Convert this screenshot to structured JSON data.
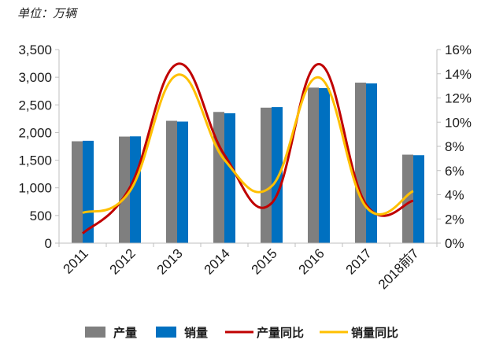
{
  "unit_label": "单位：万辆",
  "chart_data": {
    "type": "bar",
    "categories": [
      "2011",
      "2012",
      "2013",
      "2014",
      "2015",
      "2016",
      "2017",
      "2018前7"
    ],
    "series": [
      {
        "name": "产量",
        "type": "bar",
        "axis": "left",
        "color": "#7f7f7f",
        "values": [
          1842,
          1927,
          2212,
          2372,
          2450,
          2812,
          2902,
          1600
        ]
      },
      {
        "name": "销量",
        "type": "bar",
        "axis": "left",
        "color": "#0070c0",
        "values": [
          1851,
          1931,
          2198,
          2349,
          2460,
          2803,
          2888,
          1590
        ]
      },
      {
        "name": "产量同比",
        "type": "line",
        "axis": "right",
        "color": "#c00000",
        "values": [
          0.8,
          4.6,
          14.8,
          7.3,
          3.3,
          14.8,
          3.2,
          3.5
        ]
      },
      {
        "name": "销量同比",
        "type": "line",
        "axis": "right",
        "color": "#ffc000",
        "values": [
          2.5,
          4.3,
          13.9,
          6.9,
          4.7,
          13.7,
          3.0,
          4.3
        ]
      }
    ],
    "y_left": {
      "min": 0,
      "max": 3500,
      "ticks": [
        "0",
        "500",
        "1,000",
        "1,500",
        "2,000",
        "2,500",
        "3,000",
        "3,500"
      ]
    },
    "y_right": {
      "min": 0,
      "max": 16,
      "ticks": [
        "0%",
        "2%",
        "4%",
        "6%",
        "8%",
        "10%",
        "12%",
        "14%",
        "16%"
      ]
    },
    "legend": {
      "position": "bottom",
      "items": [
        "产量",
        "销量",
        "产量同比",
        "销量同比"
      ]
    },
    "grid": false
  }
}
